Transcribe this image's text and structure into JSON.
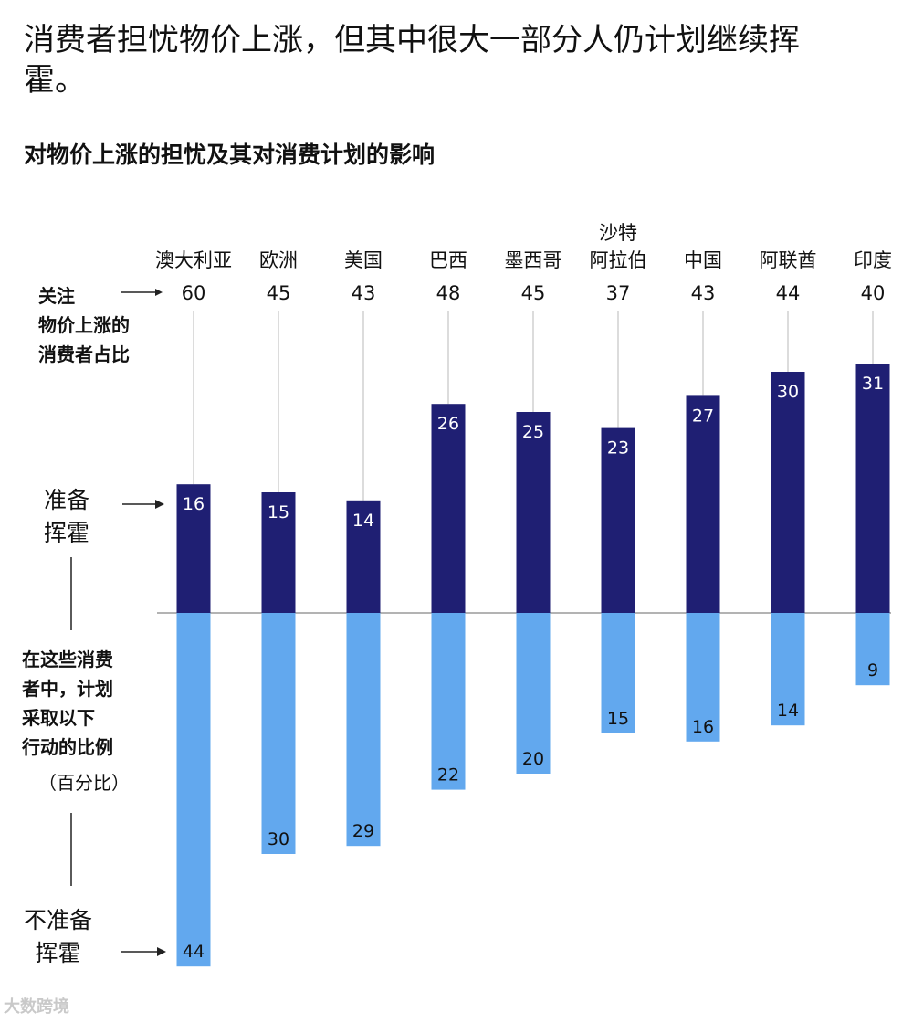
{
  "header": {
    "title": "消费者担忧物价上涨，但其中很大一部分人仍计划继续挥霍。",
    "subtitle": "对物价上涨的担忧及其对消费计划的影响"
  },
  "side_labels": {
    "concerned": [
      "关注",
      "物价上涨的",
      "消费者占比"
    ],
    "ready_to_splurge": [
      "准备",
      "挥霍"
    ],
    "among_these": [
      "在这些消费",
      "者中，计划",
      "采取以下",
      "行动的比例"
    ],
    "percent_note": "（百分比）",
    "not_ready": [
      "不准备",
      "挥霍"
    ]
  },
  "watermark": "大数跨境",
  "colors": {
    "splurge": "#1f1f73",
    "not_splurge": "#62a8ee",
    "leader": "#b8b8b8",
    "baseline": "#9a9a9a",
    "splurge_text": "#ffffff",
    "not_splurge_text": "#111111"
  },
  "chart_data": {
    "type": "bar",
    "title": "对物价上涨的担忧及其对消费计划的影响",
    "categories": [
      [
        "澳大利亚"
      ],
      [
        "欧洲"
      ],
      [
        "美国"
      ],
      [
        "巴西"
      ],
      [
        "墨西哥"
      ],
      [
        "沙特",
        "阿拉伯"
      ],
      [
        "中国"
      ],
      [
        "阿联酋"
      ],
      [
        "印度"
      ]
    ],
    "concerned_share": [
      60,
      45,
      43,
      48,
      45,
      37,
      43,
      44,
      40
    ],
    "series": [
      {
        "name": "准备挥霍",
        "values": [
          16,
          15,
          14,
          26,
          25,
          23,
          27,
          30,
          31
        ],
        "direction": "up"
      },
      {
        "name": "不准备挥霍",
        "values": [
          44,
          30,
          29,
          22,
          20,
          15,
          16,
          14,
          9
        ],
        "direction": "down"
      }
    ],
    "unit": "百分比"
  }
}
